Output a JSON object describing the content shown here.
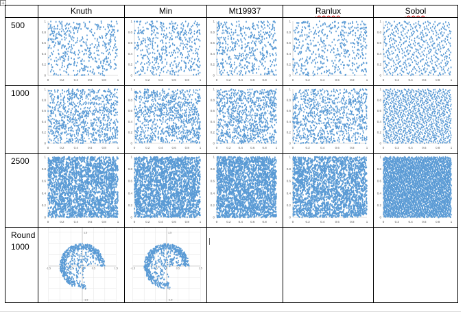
{
  "table": {
    "columns": [
      "Knuth",
      "Min",
      "Mt19937",
      "Ranlux",
      "Sobol"
    ],
    "rows": [
      {
        "label": "500",
        "n": 500,
        "kind": "square"
      },
      {
        "label": "1000",
        "n": 1000,
        "kind": "square"
      },
      {
        "label": "2500",
        "n": 2500,
        "kind": "square"
      },
      {
        "label": "Round\n1000",
        "n": 1000,
        "kind": "round"
      }
    ]
  },
  "chart_data": {
    "type": "scatter",
    "x_ticks": [
      "0",
      "0.2",
      "0.4",
      "0.6",
      "0.8",
      "1"
    ],
    "y_ticks": [
      "0",
      "0.2",
      "0.4",
      "0.6",
      "0.8",
      "1"
    ],
    "xlim": [
      0,
      1
    ],
    "ylim": [
      0,
      1
    ],
    "round_ticks": [
      "-1.5",
      "-1",
      "-0.5",
      "0",
      "0.5",
      "1",
      "1.5"
    ],
    "marker_color": "#5b9bd5",
    "round_columns": [
      "Knuth",
      "Min"
    ]
  },
  "colors": {
    "border": "#000000",
    "marker": "#5b9bd5",
    "axis": "#bfbfbf",
    "tick_text": "#595959",
    "spell_underline": "#dd2222"
  },
  "icons": {
    "move_handle": "move-arrows-icon"
  }
}
